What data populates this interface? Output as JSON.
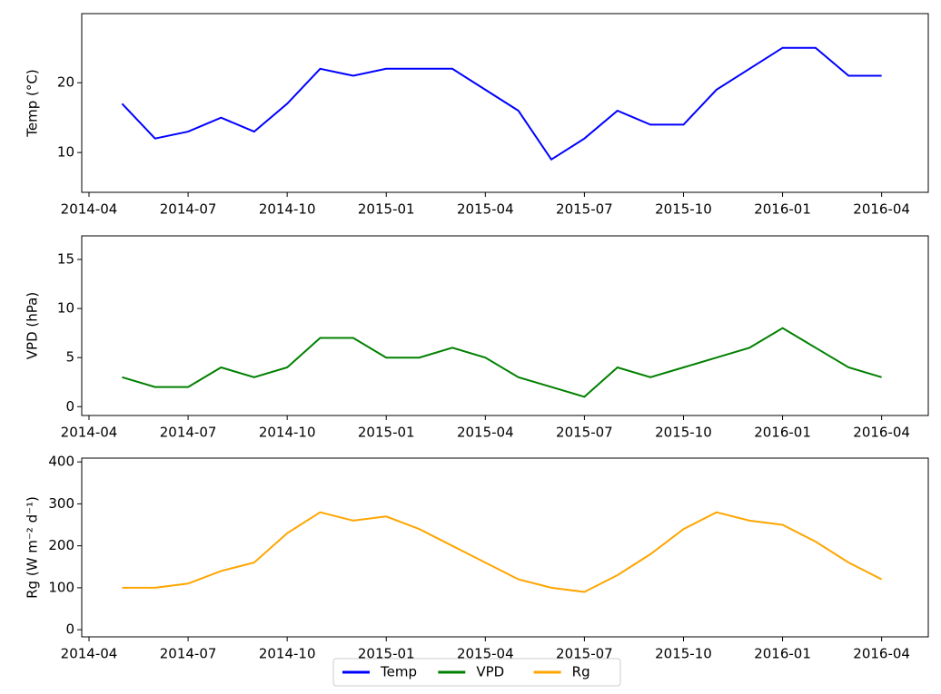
{
  "chart_data": [
    {
      "type": "line",
      "ylabel": "Temp (°C)",
      "x": [
        "2014-05",
        "2014-06",
        "2014-07",
        "2014-08",
        "2014-09",
        "2014-10",
        "2014-11",
        "2014-12",
        "2015-01",
        "2015-02",
        "2015-03",
        "2015-04",
        "2015-05",
        "2015-06",
        "2015-07",
        "2015-08",
        "2015-09",
        "2015-10",
        "2015-11",
        "2015-12",
        "2016-01",
        "2016-02",
        "2016-03",
        "2016-04"
      ],
      "series": [
        {
          "name": "Temp",
          "color": "#0000ff",
          "values": [
            17,
            12,
            13,
            15,
            13,
            17,
            22,
            21,
            22,
            22,
            22,
            19,
            16,
            9,
            12,
            16,
            14,
            14,
            19,
            22,
            25,
            25,
            21,
            21
          ]
        }
      ],
      "xlim": [
        "2014-04",
        "2016-05"
      ],
      "xticks": [
        "2014-04",
        "2014-07",
        "2014-10",
        "2015-01",
        "2015-04",
        "2015-07",
        "2015-10",
        "2016-01",
        "2016-04"
      ],
      "ylim": [
        4.3,
        29.9
      ],
      "yticks": [
        10,
        20
      ]
    },
    {
      "type": "line",
      "ylabel": "VPD (hPa)",
      "x": [
        "2014-05",
        "2014-06",
        "2014-07",
        "2014-08",
        "2014-09",
        "2014-10",
        "2014-11",
        "2014-12",
        "2015-01",
        "2015-02",
        "2015-03",
        "2015-04",
        "2015-05",
        "2015-06",
        "2015-07",
        "2015-08",
        "2015-09",
        "2015-10",
        "2015-11",
        "2015-12",
        "2016-01",
        "2016-02",
        "2016-03",
        "2016-04"
      ],
      "series": [
        {
          "name": "VPD",
          "color": "#008000",
          "values": [
            3,
            2,
            2,
            4,
            3,
            4,
            7,
            7,
            5,
            5,
            6,
            5,
            3,
            2,
            1,
            4,
            3,
            4,
            5,
            6,
            8,
            6,
            4,
            3
          ]
        }
      ],
      "xlim": [
        "2014-04",
        "2016-05"
      ],
      "xticks": [
        "2014-04",
        "2014-07",
        "2014-10",
        "2015-01",
        "2015-04",
        "2015-07",
        "2015-10",
        "2016-01",
        "2016-04"
      ],
      "ylim": [
        -0.9,
        17.4
      ],
      "yticks": [
        0,
        5,
        10,
        15
      ]
    },
    {
      "type": "line",
      "ylabel": "Rg (W m⁻² d⁻¹)",
      "x": [
        "2014-05",
        "2014-06",
        "2014-07",
        "2014-08",
        "2014-09",
        "2014-10",
        "2014-11",
        "2014-12",
        "2015-01",
        "2015-02",
        "2015-03",
        "2015-04",
        "2015-05",
        "2015-06",
        "2015-07",
        "2015-08",
        "2015-09",
        "2015-10",
        "2015-11",
        "2015-12",
        "2016-01",
        "2016-02",
        "2016-03",
        "2016-04"
      ],
      "series": [
        {
          "name": "Rg",
          "color": "#ffa500",
          "values": [
            100,
            100,
            110,
            140,
            160,
            230,
            280,
            260,
            270,
            240,
            200,
            160,
            120,
            100,
            90,
            130,
            180,
            240,
            280,
            260,
            250,
            210,
            160,
            120
          ]
        }
      ],
      "xlim": [
        "2014-04",
        "2016-05"
      ],
      "xticks": [
        "2014-04",
        "2014-07",
        "2014-10",
        "2015-01",
        "2015-04",
        "2015-07",
        "2015-10",
        "2016-01",
        "2016-04"
      ],
      "ylim": [
        -17,
        409
      ],
      "yticks": [
        0,
        100,
        200,
        300,
        400
      ]
    }
  ]
}
